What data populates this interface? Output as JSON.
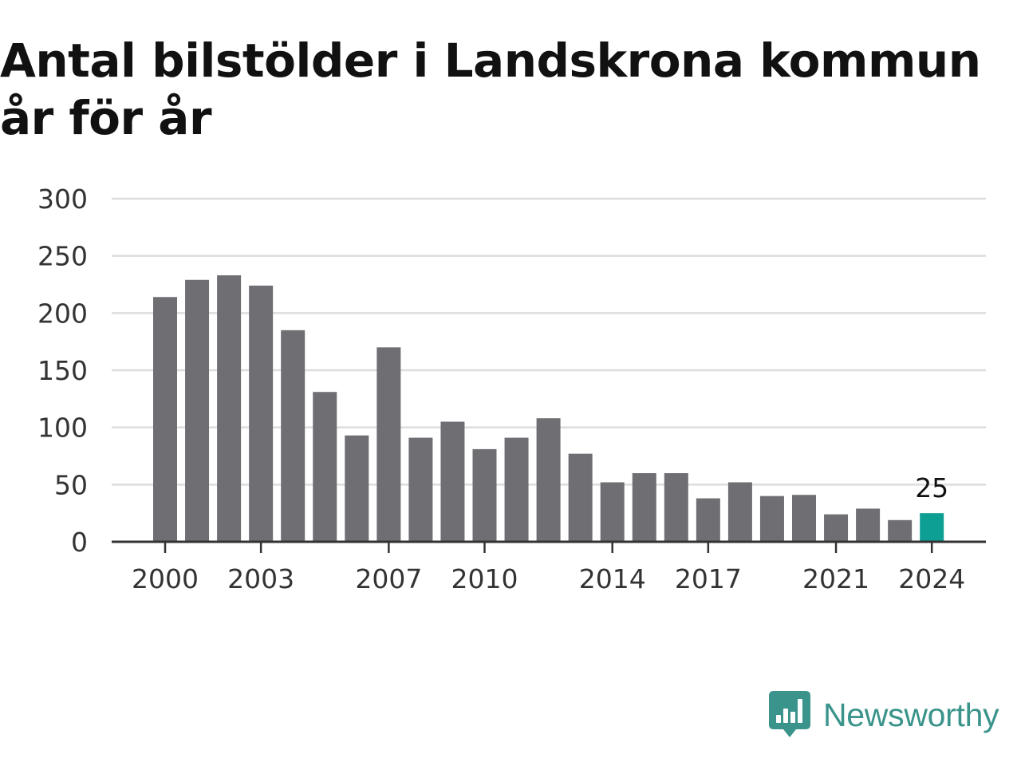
{
  "title": "Antal bilstölder i Landskrona kommun år för år",
  "brand": {
    "name": "Newsworthy",
    "icon": "newsworthy-logo-icon",
    "color": "#3a948b"
  },
  "colors": {
    "bar": "#6f6e73",
    "highlight": "#0e9f94",
    "grid": "#dddddd",
    "axis": "#333333"
  },
  "chart_data": {
    "type": "bar",
    "title": "Antal bilstölder i Landskrona kommun år för år",
    "xlabel": "",
    "ylabel": "",
    "categories": [
      2000,
      2001,
      2002,
      2003,
      2004,
      2005,
      2006,
      2007,
      2008,
      2009,
      2010,
      2011,
      2012,
      2013,
      2014,
      2015,
      2016,
      2017,
      2018,
      2019,
      2020,
      2021,
      2022,
      2023,
      2024
    ],
    "values": [
      214,
      229,
      233,
      224,
      185,
      131,
      93,
      170,
      91,
      105,
      81,
      91,
      108,
      77,
      52,
      60,
      60,
      38,
      52,
      40,
      41,
      24,
      29,
      19,
      25
    ],
    "x_tick_labels": [
      "2000",
      "2003",
      "2007",
      "2010",
      "2014",
      "2017",
      "2021",
      "2024"
    ],
    "y_ticks": [
      0,
      50,
      100,
      150,
      200,
      250,
      300
    ],
    "ylim": [
      0,
      300
    ],
    "highlight": {
      "category": 2024,
      "label": "25"
    },
    "grid": true,
    "legend": "none"
  }
}
